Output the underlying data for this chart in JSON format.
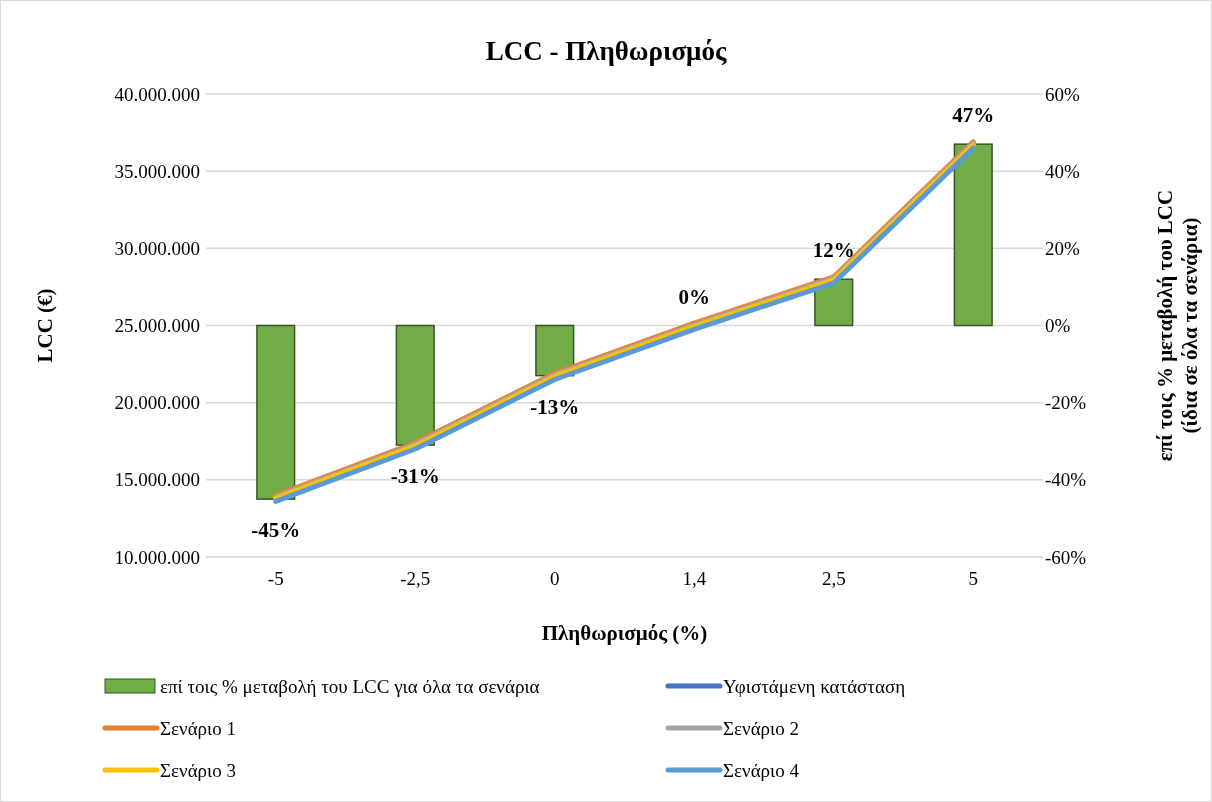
{
  "chart_data": {
    "type": "line",
    "title": "LCC - Πληθωρισμός",
    "xlabel": "Πληθωρισμός (%)",
    "ylabel": "LCC (€)",
    "y2label": "επί τοις % μεταβολή του LCC\n(ίδια σε όλα τα σενάρια)",
    "categories": [
      "-5",
      "-2,5",
      "0",
      "1,4",
      "2,5",
      "5"
    ],
    "series": [
      {
        "name": "επί τοις % μεταβολή του LCC για όλα τα σενάρια",
        "type": "bar",
        "axis": "y2",
        "color": "#70ad47",
        "values": [
          -45,
          -31,
          -13,
          0,
          12,
          47
        ],
        "value_labels": [
          "-45%",
          "-31%",
          "-13%",
          "0%",
          "12%",
          "47%"
        ]
      },
      {
        "name": "Υφιστάμενη κατάσταση",
        "color": "#4472c4",
        "values": [
          null,
          null,
          null,
          null,
          null,
          null
        ]
      },
      {
        "name": "Σενάριο 1",
        "color": "#ed7d31",
        "values": [
          14000000,
          17400000,
          21900000,
          25150000,
          28150000,
          36900000
        ]
      },
      {
        "name": "Σενάριο 2",
        "color": "#a5a5a5",
        "values": [
          13900000,
          17300000,
          21800000,
          25050000,
          28050000,
          36800000
        ]
      },
      {
        "name": "Σενάριο 3",
        "color": "#ffc000",
        "values": [
          13800000,
          17200000,
          21700000,
          24950000,
          27950000,
          36700000
        ]
      },
      {
        "name": "Σενάριο 4",
        "color": "#5b9bd5",
        "values": [
          13600000,
          17000000,
          21500000,
          24750000,
          27750000,
          36500000
        ]
      }
    ],
    "ylim": [
      10000000,
      40000000
    ],
    "yticks": [
      {
        "value": 10000000,
        "label": "10.000.000"
      },
      {
        "value": 15000000,
        "label": "15.000.000"
      },
      {
        "value": 20000000,
        "label": "20.000.000"
      },
      {
        "value": 25000000,
        "label": "25.000.000"
      },
      {
        "value": 30000000,
        "label": "30.000.000"
      },
      {
        "value": 35000000,
        "label": "35.000.000"
      },
      {
        "value": 40000000,
        "label": "40.000.000"
      }
    ],
    "y2lim": [
      -60,
      60
    ],
    "y2ticks": [
      {
        "value": -60,
        "label": "-60%"
      },
      {
        "value": -40,
        "label": "-40%"
      },
      {
        "value": -20,
        "label": "-20%"
      },
      {
        "value": 0,
        "label": "0%"
      },
      {
        "value": 20,
        "label": "20%"
      },
      {
        "value": 40,
        "label": "40%"
      },
      {
        "value": 60,
        "label": "60%"
      }
    ],
    "grid": "y",
    "legend": "bottom",
    "marker": "none",
    "line_style": "solid"
  }
}
